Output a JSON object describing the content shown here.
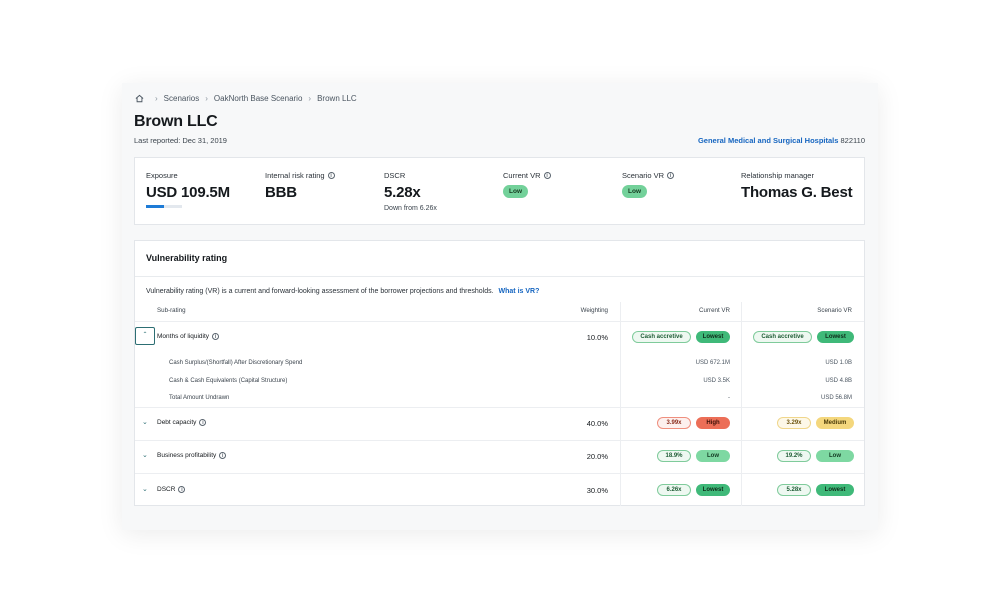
{
  "breadcrumb": [
    "Scenarios",
    "OakNorth Base Scenario",
    "Brown LLC"
  ],
  "title": "Brown LLC",
  "last_reported": "Last reported: Dec 31, 2019",
  "industry": {
    "name": "General Medical and Surgical Hospitals",
    "code": "822110"
  },
  "summary": {
    "exposure": {
      "label": "Exposure",
      "value": "USD 109.5M",
      "bar_fraction": 0.5
    },
    "internal_risk": {
      "label": "Internal risk rating",
      "value": "BBB"
    },
    "dscr": {
      "label": "DSCR",
      "value": "5.28x",
      "sub": "Down from 6.26x"
    },
    "current_vr": {
      "label": "Current VR",
      "value": "Low"
    },
    "scenario_vr": {
      "label": "Scenario VR",
      "value": "Low"
    },
    "rm": {
      "label": "Relationship manager",
      "value": "Thomas G. Best"
    }
  },
  "vr": {
    "title": "Vulnerability rating",
    "description": "Vulnerability rating (VR) is a current and forward-looking assessment of the borrower projections and thresholds.",
    "link": "What is VR?",
    "columns": {
      "sub_rating": "Sub-rating",
      "weighting": "Weighting",
      "current": "Current VR",
      "scenario": "Scenario VR"
    },
    "rows": [
      {
        "label": "Months of liquidity",
        "weight": "10.0%",
        "cur_value": "Cash accretive",
        "cur_rating": "Lowest",
        "scn_value": "Cash accretive",
        "scn_rating": "Lowest",
        "subs": [
          {
            "label": "Cash Surplus/(Shortfall) After Discretionary Spend",
            "cur": "USD 672.1M",
            "scn": "USD 1.0B"
          },
          {
            "label": "Cash & Cash Equivalents (Capital Structure)",
            "cur": "USD 3.5K",
            "scn": "USD 4.8B"
          },
          {
            "label": "Total Amount Undrawn",
            "cur": "-",
            "scn": "USD 56.8M"
          }
        ]
      },
      {
        "label": "Debt capacity",
        "weight": "40.0%",
        "cur_value": "3.99x",
        "cur_rating": "High",
        "scn_value": "3.29x",
        "scn_rating": "Medium"
      },
      {
        "label": "Business profitability",
        "weight": "20.0%",
        "cur_value": "18.9%",
        "cur_rating": "Low",
        "scn_value": "19.2%",
        "scn_rating": "Low"
      },
      {
        "label": "DSCR",
        "weight": "30.0%",
        "cur_value": "6.26x",
        "cur_rating": "Lowest",
        "scn_value": "5.28x",
        "scn_rating": "Lowest"
      }
    ]
  },
  "icons": {
    "home": "home-icon",
    "chevron": "chevron-right-icon",
    "info": "info-icon"
  },
  "colors": {
    "accent": "#1565c0",
    "low": "#73d19a",
    "high": "#ec6e57",
    "medium": "#f4d77d"
  }
}
